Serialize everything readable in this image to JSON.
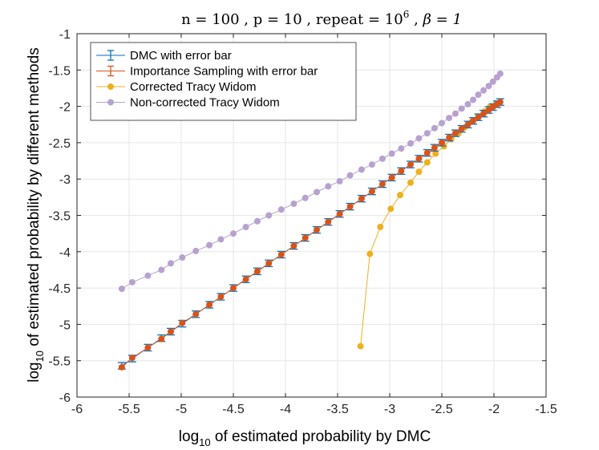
{
  "chart_data": {
    "type": "line",
    "title": "n = 100 , p = 10 , repeat = 10^6 , β = 1",
    "title_parts": {
      "n": "n = 100",
      "p": "p = 10",
      "repeat_base": "repeat = 10",
      "repeat_exp": "6",
      "beta": "β = 1",
      "sep": " , "
    },
    "xlabel": {
      "log": "log",
      "sub": "10",
      "rest": " of estimated probability by DMC"
    },
    "ylabel": {
      "log": "log",
      "sub": "10",
      "rest": " of estimated probability by different methods"
    },
    "xlim": [
      -6,
      -1.5
    ],
    "ylim": [
      -6,
      -1
    ],
    "xticks": [
      -6,
      -5.5,
      -5,
      -4.5,
      -4,
      -3.5,
      -3,
      -2.5,
      -2,
      -1.5
    ],
    "xtick_labels": [
      "-6",
      "-5.5",
      "-5",
      "-4.5",
      "-4",
      "-3.5",
      "-3",
      "-2.5",
      "-2",
      "-1.5"
    ],
    "yticks": [
      -6,
      -5.5,
      -5,
      -4.5,
      -4,
      -3.5,
      -3,
      -2.5,
      -2,
      -1.5,
      -1
    ],
    "ytick_labels": [
      "-6",
      "-5.5",
      "-5",
      "-4.5",
      "-4",
      "-3.5",
      "-3",
      "-2.5",
      "-2",
      "-1.5",
      "-1"
    ],
    "grid": true,
    "legend_position": "top-left",
    "x": [
      -5.57,
      -5.47,
      -5.32,
      -5.19,
      -5.1,
      -4.99,
      -4.86,
      -4.73,
      -4.62,
      -4.5,
      -4.38,
      -4.27,
      -4.16,
      -4.04,
      -3.92,
      -3.81,
      -3.7,
      -3.59,
      -3.48,
      -3.38,
      -3.27,
      -3.17,
      -3.07,
      -2.98,
      -2.89,
      -2.8,
      -2.72,
      -2.64,
      -2.57,
      -2.5,
      -2.43,
      -2.37,
      -2.31,
      -2.25,
      -2.2,
      -2.15,
      -2.1,
      -2.05,
      -2.01,
      -1.97,
      -1.94
    ],
    "series": [
      {
        "name": "DMC with error bar",
        "color": "#0072bd",
        "marker": "errorbar",
        "values": [
          -5.57,
          -5.47,
          -5.32,
          -5.19,
          -5.1,
          -4.99,
          -4.86,
          -4.73,
          -4.62,
          -4.5,
          -4.38,
          -4.27,
          -4.16,
          -4.04,
          -3.92,
          -3.81,
          -3.7,
          -3.59,
          -3.48,
          -3.38,
          -3.27,
          -3.17,
          -3.07,
          -2.98,
          -2.89,
          -2.8,
          -2.72,
          -2.64,
          -2.57,
          -2.5,
          -2.43,
          -2.37,
          -2.31,
          -2.25,
          -2.2,
          -2.15,
          -2.1,
          -2.05,
          -2.01,
          -1.97,
          -1.94
        ],
        "error": 0.045
      },
      {
        "name": "Importance Sampling with error bar",
        "color": "#d95319",
        "marker": "dot-errorbar",
        "values": [
          -5.59,
          -5.46,
          -5.32,
          -5.2,
          -5.1,
          -4.98,
          -4.86,
          -4.73,
          -4.62,
          -4.5,
          -4.38,
          -4.27,
          -4.16,
          -4.04,
          -3.92,
          -3.81,
          -3.7,
          -3.59,
          -3.48,
          -3.38,
          -3.27,
          -3.17,
          -3.07,
          -2.98,
          -2.89,
          -2.8,
          -2.72,
          -2.64,
          -2.57,
          -2.5,
          -2.43,
          -2.37,
          -2.31,
          -2.25,
          -2.2,
          -2.15,
          -2.1,
          -2.05,
          -2.01,
          -1.97,
          -1.94
        ],
        "error": 0.02
      },
      {
        "name": "Corrected Tracy Widom",
        "color": "#edb120",
        "marker": "dot",
        "x": [
          -3.28,
          -3.19,
          -3.09,
          -2.99,
          -2.9,
          -2.8,
          -2.72,
          -2.64,
          -2.56,
          -2.48,
          -2.41,
          -2.34,
          -2.28,
          -2.21,
          -2.15,
          -2.09,
          -2.04,
          -1.98,
          -1.94
        ],
        "values": [
          -5.3,
          -4.03,
          -3.66,
          -3.41,
          -3.22,
          -3.05,
          -2.9,
          -2.77,
          -2.65,
          -2.55,
          -2.45,
          -2.37,
          -2.29,
          -2.21,
          -2.14,
          -2.07,
          -2.01,
          -1.97,
          -1.94
        ]
      },
      {
        "name": "Non-corrected Tracy Widom",
        "color": "#b7a2cf",
        "marker": "dot",
        "values": [
          -4.51,
          -4.42,
          -4.33,
          -4.25,
          -4.16,
          -4.08,
          -3.99,
          -3.91,
          -3.83,
          -3.75,
          -3.66,
          -3.58,
          -3.5,
          -3.42,
          -3.34,
          -3.26,
          -3.18,
          -3.1,
          -3.03,
          -2.95,
          -2.87,
          -2.8,
          -2.72,
          -2.65,
          -2.58,
          -2.51,
          -2.44,
          -2.37,
          -2.3,
          -2.23,
          -2.16,
          -2.1,
          -2.03,
          -1.97,
          -1.91,
          -1.84,
          -1.78,
          -1.72,
          -1.66,
          -1.6,
          -1.55
        ]
      }
    ]
  }
}
